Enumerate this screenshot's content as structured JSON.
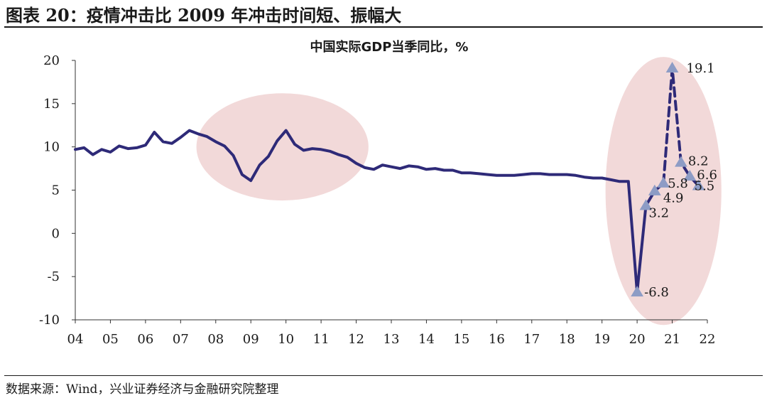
{
  "figure": {
    "title": "图表 20：疫情冲击比 2009 年冲击时间短、振幅大",
    "source": "数据来源：Wind，兴业证券经济与金融研究院整理"
  },
  "colors": {
    "line": "#2e2a78",
    "marker": "#8d9cc5",
    "highlight": "#f0d2d2",
    "axis": "#333333"
  },
  "chart_data": {
    "type": "line",
    "title": "中国实际GDP当季同比，%",
    "xlabel": "",
    "ylabel": "",
    "ylim": [
      -10,
      20
    ],
    "yticks": [
      -10,
      -5,
      0,
      5,
      10,
      15,
      20
    ],
    "xlim": [
      2004,
      2022
    ],
    "xticks": [
      "04",
      "05",
      "06",
      "07",
      "08",
      "09",
      "10",
      "11",
      "12",
      "13",
      "14",
      "15",
      "16",
      "17",
      "18",
      "19",
      "20",
      "21",
      "22"
    ],
    "grid": false,
    "series": [
      {
        "style": "solid",
        "x": [
          2004.0,
          2004.25,
          2004.5,
          2004.75,
          2005.0,
          2005.25,
          2005.5,
          2005.75,
          2006.0,
          2006.25,
          2006.5,
          2006.75,
          2007.0,
          2007.25,
          2007.5,
          2007.75,
          2008.0,
          2008.25,
          2008.5,
          2008.75,
          2009.0,
          2009.25,
          2009.5,
          2009.75,
          2010.0,
          2010.25,
          2010.5,
          2010.75,
          2011.0,
          2011.25,
          2011.5,
          2011.75,
          2012.0,
          2012.25,
          2012.5,
          2012.75,
          2013.0,
          2013.25,
          2013.5,
          2013.75,
          2014.0,
          2014.25,
          2014.5,
          2014.75,
          2015.0,
          2015.25,
          2015.5,
          2015.75,
          2016.0,
          2016.25,
          2016.5,
          2016.75,
          2017.0,
          2017.25,
          2017.5,
          2017.75,
          2018.0,
          2018.25,
          2018.5,
          2018.75,
          2019.0,
          2019.25,
          2019.5,
          2019.75,
          2020.0,
          2020.25,
          2020.5,
          2020.75
        ],
        "values": [
          9.7,
          9.9,
          9.1,
          9.7,
          9.4,
          10.1,
          9.8,
          9.9,
          10.2,
          11.7,
          10.6,
          10.4,
          11.1,
          11.9,
          11.5,
          11.2,
          10.6,
          10.1,
          9.0,
          6.8,
          6.1,
          7.9,
          8.9,
          10.7,
          11.9,
          10.3,
          9.6,
          9.8,
          9.7,
          9.5,
          9.1,
          8.8,
          8.1,
          7.6,
          7.4,
          7.9,
          7.7,
          7.5,
          7.8,
          7.7,
          7.4,
          7.5,
          7.3,
          7.3,
          7.0,
          7.0,
          6.9,
          6.8,
          6.7,
          6.7,
          6.7,
          6.8,
          6.9,
          6.9,
          6.8,
          6.8,
          6.8,
          6.7,
          6.5,
          6.4,
          6.4,
          6.2,
          6.0,
          6.0,
          -6.8,
          3.2,
          4.9,
          5.8
        ]
      },
      {
        "style": "dashed",
        "x": [
          2020.75,
          2021.0,
          2021.25,
          2021.5,
          2021.75
        ],
        "values": [
          5.8,
          19.1,
          8.2,
          6.6,
          5.5
        ]
      }
    ],
    "markers": [
      {
        "x": 2020.0,
        "y": -6.8,
        "label": "-6.8"
      },
      {
        "x": 2020.25,
        "y": 3.2,
        "label": "3.2"
      },
      {
        "x": 2020.5,
        "y": 4.9,
        "label": "4.9"
      },
      {
        "x": 2020.75,
        "y": 5.8,
        "label": "5.8"
      },
      {
        "x": 2021.0,
        "y": 19.1,
        "label": "19.1"
      },
      {
        "x": 2021.25,
        "y": 8.2,
        "label": "8.2"
      },
      {
        "x": 2021.5,
        "y": 6.6,
        "label": "6.6"
      },
      {
        "x": 2021.75,
        "y": 5.5,
        "label": "5.5"
      }
    ],
    "highlights": [
      {
        "x_center": 2009.9,
        "y_center": 10.0,
        "x_radius": 2.45,
        "y_radius": 6.2
      },
      {
        "x_center": 2020.75,
        "y_center": 4.9,
        "x_radius": 1.65,
        "y_radius": 15.5
      }
    ]
  }
}
